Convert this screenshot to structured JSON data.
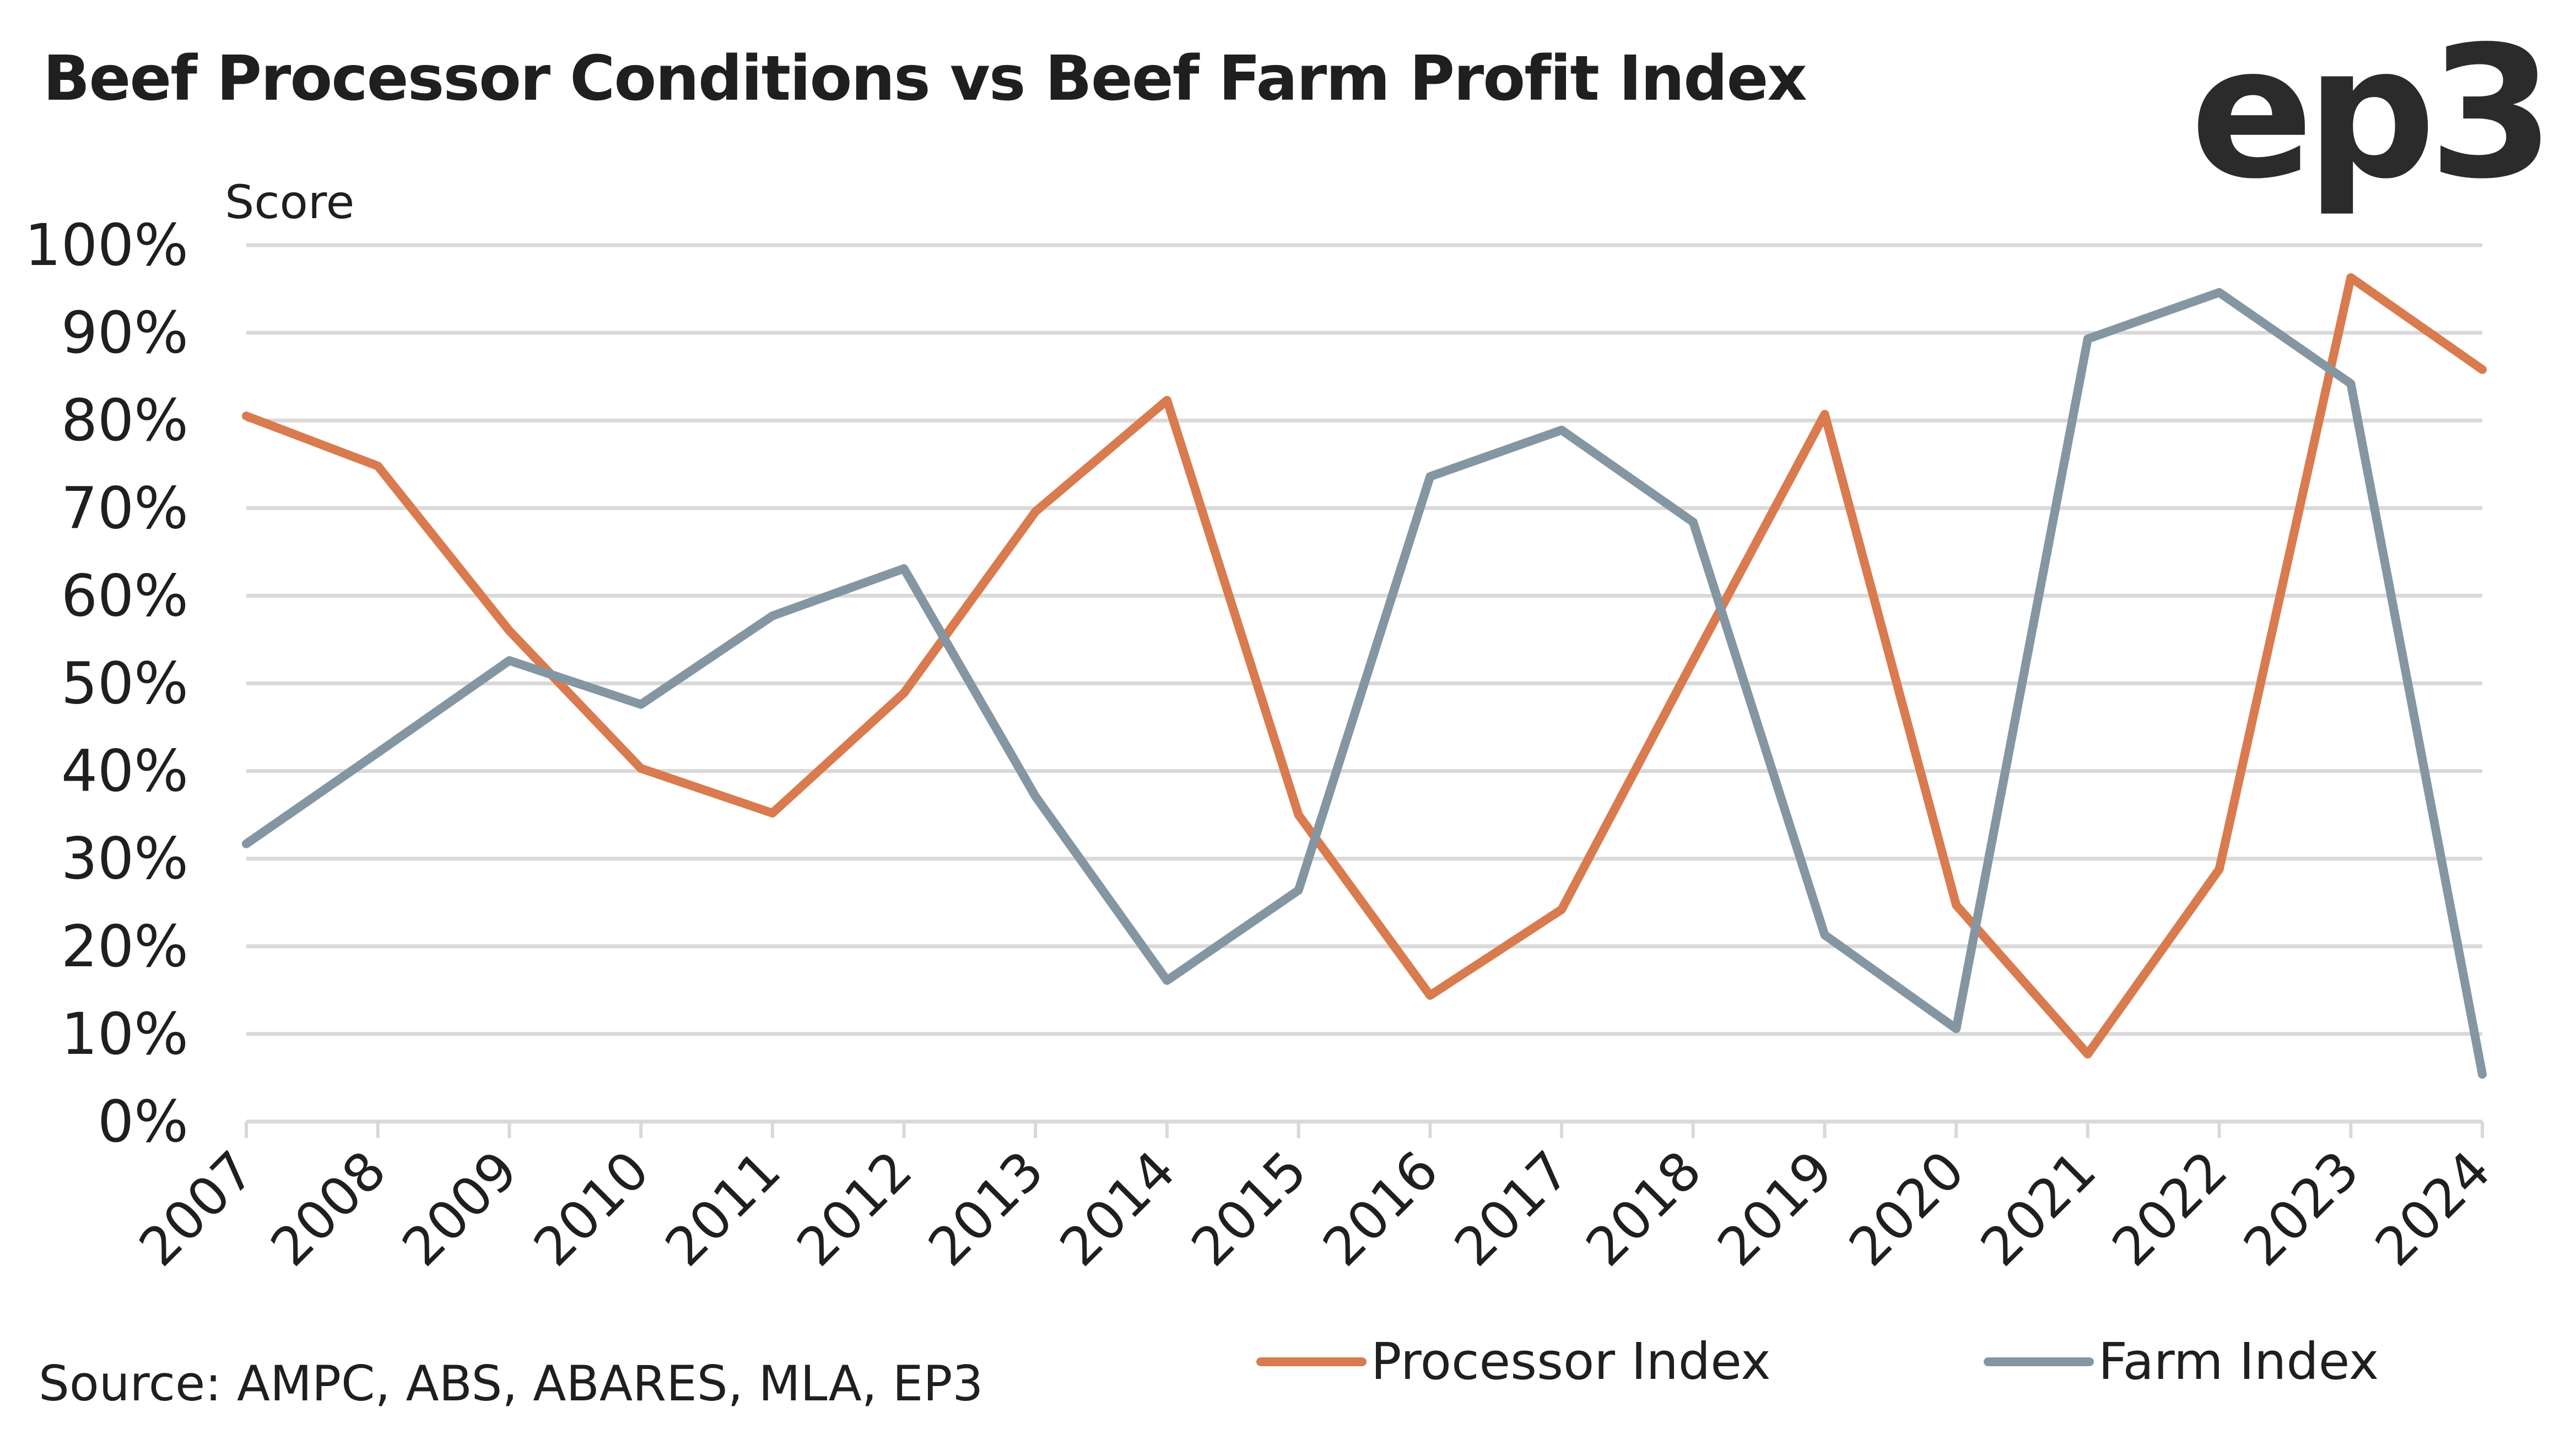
{
  "title": "Beef Processor Conditions vs Beef Farm Profit Index",
  "logo_text": "ep3",
  "source": "Source: AMPC, ABS, ABARES, MLA, EP3",
  "colors": {
    "processor": "#D97B4F",
    "farm": "#8496A1",
    "grid": "#D9D9D9",
    "text": "#1F1F1F"
  },
  "chart_data": {
    "type": "line",
    "title": "Beef Processor Conditions vs Beef Farm Profit Index",
    "xlabel": "",
    "ylabel": "Score",
    "x": [
      "2007",
      "2008",
      "2009",
      "2010",
      "2011",
      "2012",
      "2013",
      "2014",
      "2015",
      "2016",
      "2017",
      "2018",
      "2019",
      "2020",
      "2021",
      "2022",
      "2023",
      "2024"
    ],
    "series": [
      {
        "name": "Processor Index",
        "color": "#D97B4F",
        "values": [
          80.5,
          74.8,
          56.0,
          40.3,
          35.2,
          48.9,
          69.6,
          82.3,
          35.0,
          14.4,
          24.2,
          52.6,
          80.7,
          24.7,
          7.7,
          28.8,
          96.3,
          85.8
        ]
      },
      {
        "name": "Farm Index",
        "color": "#8496A1",
        "values": [
          31.7,
          42.1,
          52.6,
          47.6,
          57.7,
          63.1,
          37.1,
          16.1,
          26.4,
          73.6,
          78.9,
          68.4,
          21.3,
          10.6,
          89.3,
          94.6,
          84.2,
          5.4
        ]
      }
    ],
    "ylim": [
      0,
      100
    ],
    "yticks": [
      "0%",
      "10%",
      "20%",
      "30%",
      "40%",
      "50%",
      "60%",
      "70%",
      "80%",
      "90%",
      "100%"
    ],
    "ytick_values": [
      0,
      10,
      20,
      30,
      40,
      50,
      60,
      70,
      80,
      90,
      100
    ],
    "grid": true,
    "legend_position": "bottom-right",
    "x_label_rotation": "-45 degrees"
  }
}
